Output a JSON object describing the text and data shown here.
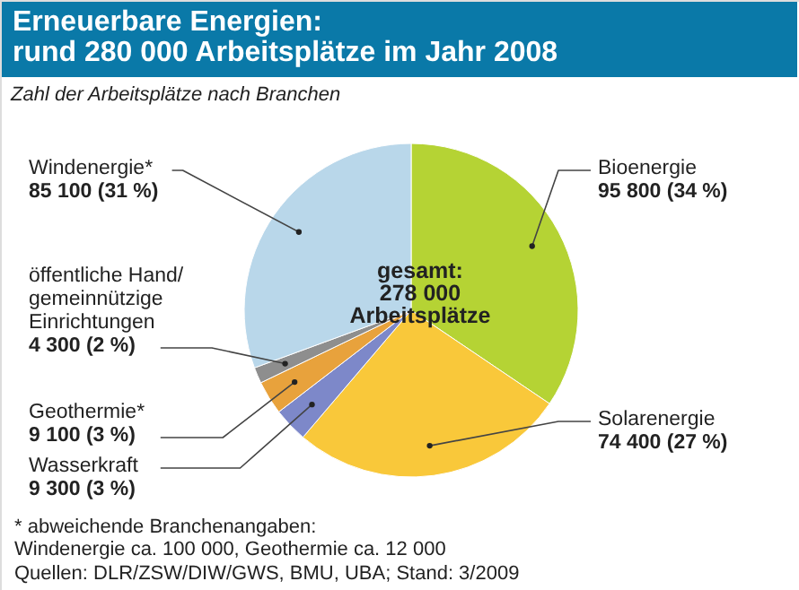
{
  "chart_data": {
    "type": "pie",
    "title": "Erneuerbare Energien:\nrund 280 000 Arbeitsplätze im Jahr 2008",
    "subtitle": "Zahl der Arbeitsplätze nach Branchen",
    "categories": [
      "Bioenergie",
      "Solarenergie",
      "Wasserkraft",
      "Geothermie*",
      "öffentliche Hand/\ngemeinnützige\nEinrichtungen",
      "Windenergie*"
    ],
    "values": [
      95800,
      74400,
      9300,
      9100,
      4300,
      85100
    ],
    "value_labels": [
      "95 800 (34 %)",
      "74 400 (27 %)",
      "9 300 (3 %)",
      "9 100 (3 %)",
      "4 300 (2 %)",
      "85 100 (31 %)"
    ],
    "colors": [
      "#b5d334",
      "#f9c83a",
      "#7d88c9",
      "#e8a23c",
      "#8e8e8e",
      "#b9d7ea"
    ],
    "annotations": [
      "gesamt:\n278 000\nArbeitsplätze",
      "* abweichende Branchenangaben:\n   Windenergie ca. 100 000, Geothermie ca. 12 000",
      "Quellen: DLR/ZSW/DIW/GWS, BMU, UBA; Stand: 3/2009"
    ]
  }
}
